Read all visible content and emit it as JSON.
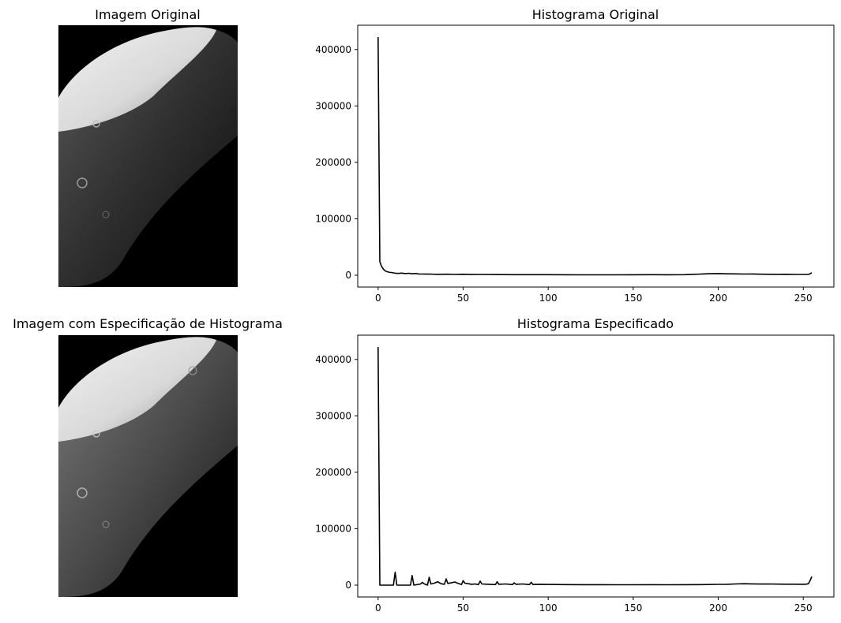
{
  "panels": [
    {
      "kind": "image",
      "title": "Imagem Original"
    },
    {
      "kind": "image",
      "title": "Imagem com Especificação de Histograma"
    }
  ],
  "chart_data": [
    {
      "type": "line",
      "title": "Histograma Original",
      "xlabel": "",
      "ylabel": "",
      "xlim": [
        -12,
        268
      ],
      "ylim": [
        -21000,
        443000
      ],
      "xticks": [
        0,
        50,
        100,
        150,
        200,
        250
      ],
      "yticks": [
        0,
        100000,
        200000,
        300000,
        400000
      ],
      "color": "#000000",
      "series": [
        {
          "x": [
            0,
            1,
            2,
            3,
            4,
            5,
            6,
            7,
            8,
            9,
            10,
            12,
            14,
            16,
            18,
            20,
            22,
            24,
            26,
            28,
            30,
            35,
            40,
            45,
            50,
            55,
            60,
            70,
            80,
            90,
            100,
            110,
            120,
            130,
            140,
            150,
            160,
            170,
            180,
            185,
            190,
            195,
            200,
            205,
            210,
            215,
            220,
            225,
            230,
            235,
            240,
            245,
            250,
            253,
            254,
            255
          ],
          "y": [
            422000,
            24000,
            16000,
            11000,
            8000,
            6500,
            5500,
            5000,
            4800,
            4200,
            3600,
            3200,
            3800,
            2900,
            3400,
            2500,
            3100,
            2200,
            2100,
            1900,
            2000,
            1500,
            1800,
            1300,
            1600,
            1200,
            1300,
            1100,
            1000,
            1000,
            900,
            800,
            700,
            700,
            700,
            800,
            900,
            800,
            900,
            1500,
            2100,
            2600,
            2900,
            2500,
            2300,
            2000,
            2200,
            1800,
            1700,
            1500,
            1600,
            1400,
            1300,
            1500,
            2500,
            4500
          ]
        }
      ]
    },
    {
      "type": "line",
      "title": "Histograma Especificado",
      "xlabel": "",
      "ylabel": "",
      "xlim": [
        -12,
        268
      ],
      "ylim": [
        -21000,
        443000
      ],
      "xticks": [
        0,
        50,
        100,
        150,
        200,
        250
      ],
      "yticks": [
        0,
        100000,
        200000,
        300000,
        400000
      ],
      "color": "#000000",
      "series": [
        {
          "x": [
            0,
            1,
            2,
            5,
            9,
            10,
            11,
            15,
            19,
            20,
            21,
            25,
            26,
            27,
            29,
            30,
            31,
            33,
            35,
            37,
            39,
            40,
            41,
            43,
            45,
            47,
            49,
            50,
            51,
            53,
            55,
            57,
            59,
            60,
            61,
            65,
            69,
            70,
            71,
            75,
            79,
            80,
            81,
            85,
            89,
            90,
            91,
            95,
            100,
            110,
            120,
            130,
            140,
            150,
            160,
            170,
            180,
            190,
            200,
            205,
            210,
            215,
            220,
            225,
            230,
            235,
            240,
            245,
            250,
            252,
            253,
            254,
            255
          ],
          "y": [
            422000,
            0,
            0,
            0,
            0,
            23000,
            0,
            0,
            0,
            17000,
            0,
            2000,
            5000,
            2500,
            0,
            14000,
            2000,
            3500,
            6000,
            2500,
            1500,
            11000,
            3000,
            4000,
            5500,
            3000,
            1000,
            8000,
            3500,
            2500,
            1500,
            2000,
            1000,
            7000,
            2000,
            1500,
            1000,
            6000,
            1500,
            2000,
            1000,
            4000,
            1500,
            2000,
            1000,
            5000,
            1200,
            1500,
            1200,
            900,
            800,
            800,
            700,
            700,
            800,
            700,
            800,
            1000,
            1300,
            1500,
            2000,
            2500,
            2200,
            1900,
            2100,
            1800,
            1700,
            1600,
            1500,
            1800,
            2500,
            8000,
            15000
          ]
        }
      ]
    }
  ]
}
